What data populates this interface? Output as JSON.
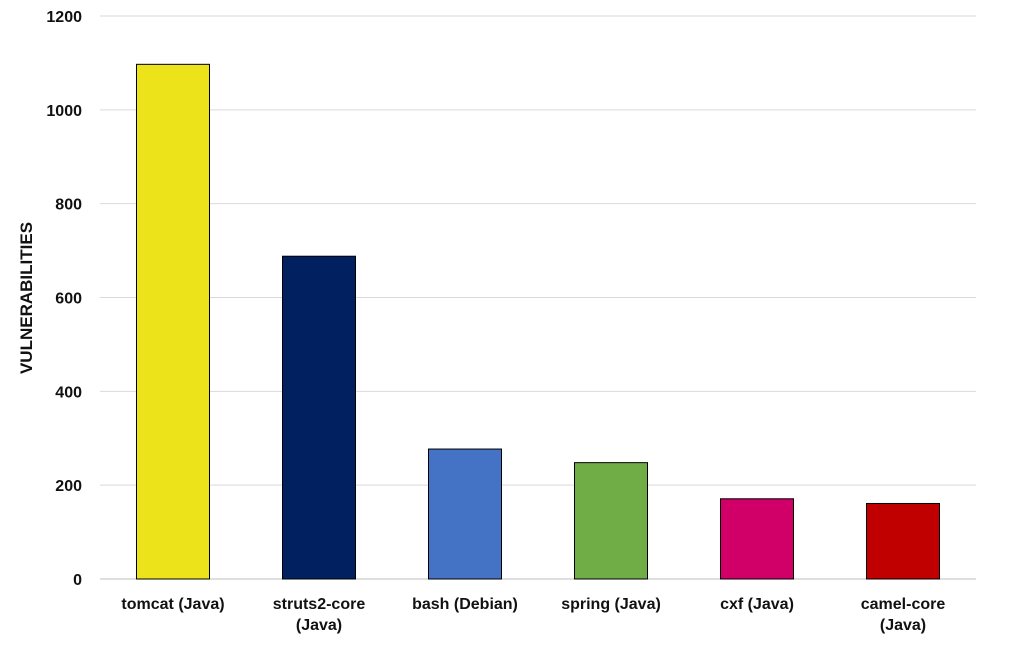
{
  "chart_data": {
    "type": "bar",
    "title": "",
    "xlabel": "",
    "ylabel": "VULNERABILITIES",
    "ylim": [
      0,
      1200
    ],
    "yticks": [
      0,
      200,
      400,
      600,
      800,
      1000,
      1200
    ],
    "grid": true,
    "legend": "none",
    "categories": [
      [
        "tomcat (Java)"
      ],
      [
        "struts2-core",
        "(Java)"
      ],
      [
        "bash (Debian)"
      ],
      [
        "spring (Java)"
      ],
      [
        "cxf (Java)"
      ],
      [
        "camel-core",
        "(Java)"
      ]
    ],
    "values": [
      1097,
      688,
      277,
      248,
      171,
      161
    ],
    "colors": [
      "#ece31a",
      "#00205f",
      "#4472c4",
      "#70ad47",
      "#d10068",
      "#c00000"
    ]
  }
}
